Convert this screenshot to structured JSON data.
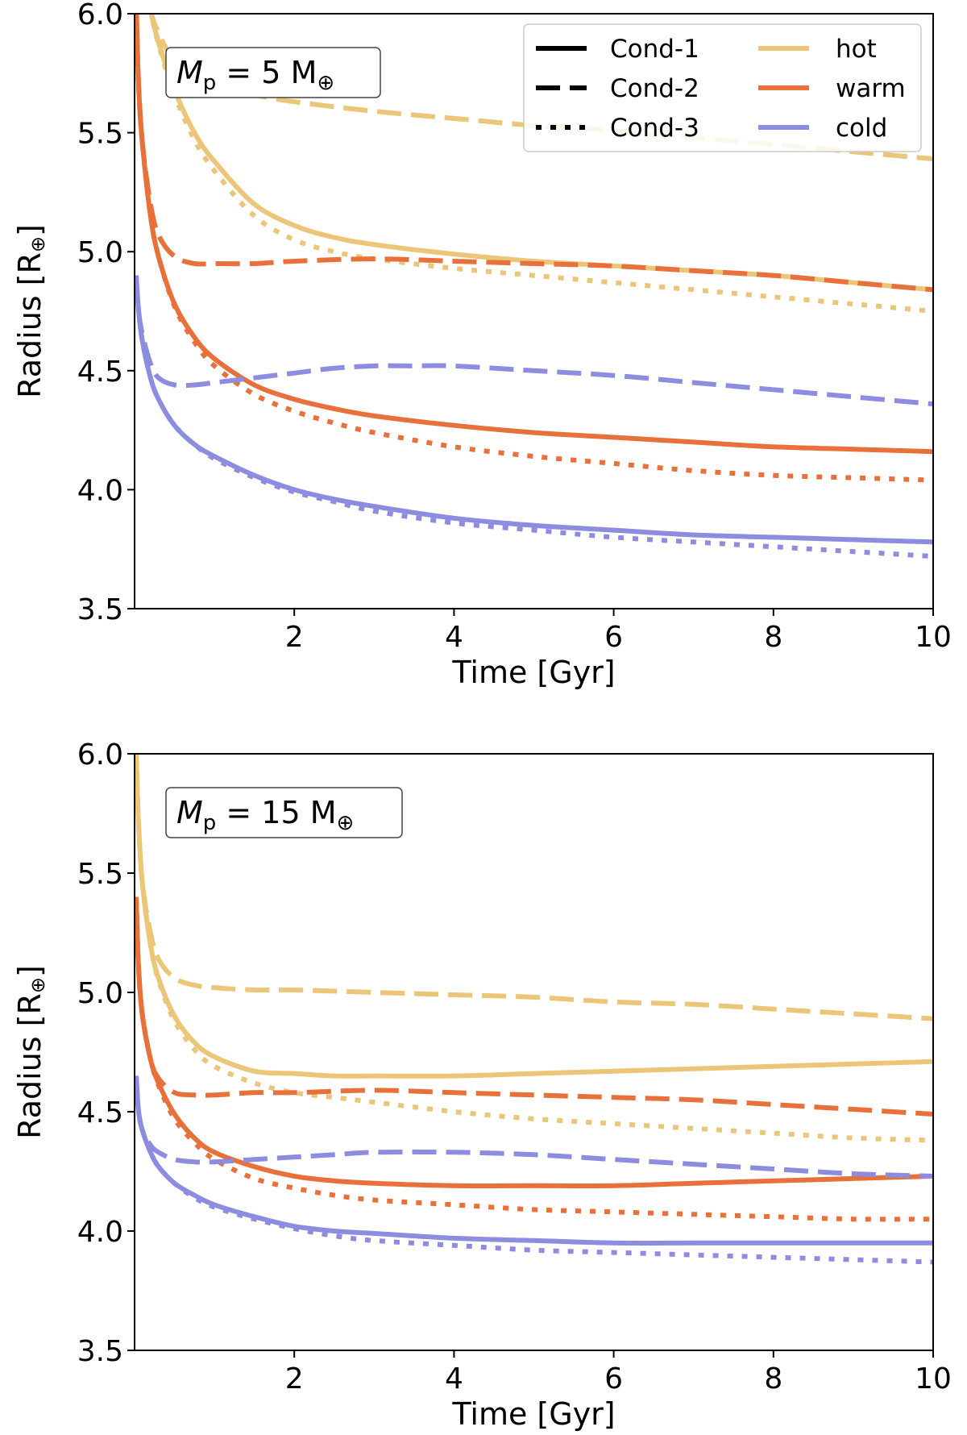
{
  "colors": {
    "hot": "#ebc578",
    "warm": "#e8703a",
    "cold": "#8c8de0",
    "legend_key": "#000000"
  },
  "legend": {
    "styles": [
      {
        "key": "cond1",
        "label": "Cond-1",
        "dash": "solid"
      },
      {
        "key": "cond2",
        "label": "Cond-2",
        "dash": "dashed"
      },
      {
        "key": "cond3",
        "label": "Cond-3",
        "dash": "dotted"
      }
    ],
    "temps": [
      {
        "key": "hot",
        "label": "hot"
      },
      {
        "key": "warm",
        "label": "warm"
      },
      {
        "key": "cold",
        "label": "cold"
      }
    ]
  },
  "chart_data": [
    {
      "type": "line",
      "title": "",
      "annotation": {
        "prefix": "M",
        "sub": "p",
        "value": " = 5 M",
        "symbol": "⊕"
      },
      "xlabel": "Time [Gyr]",
      "ylabel": "Radius [R",
      "ylabel_symbol": "⊕",
      "ylabel_close": "]",
      "xlim": [
        0,
        10
      ],
      "ylim": [
        3.5,
        6.0
      ],
      "xticks": [
        "2",
        "4",
        "6",
        "8",
        "10"
      ],
      "yticks": [
        "3.5",
        "4.0",
        "4.5",
        "5.0",
        "5.5",
        "6.0"
      ],
      "legend_position": "top-right",
      "series": [
        {
          "name": "hot Cond-1",
          "temp": "hot",
          "style": "cond1",
          "x": [
            0.05,
            0.1,
            0.2,
            0.3,
            0.5,
            0.75,
            1.0,
            1.5,
            2.0,
            2.5,
            3.0,
            4.0,
            5.0,
            6.0,
            7.0,
            8.0,
            9.0,
            10.0
          ],
          "y": [
            6.45,
            6.25,
            6.02,
            5.88,
            5.68,
            5.5,
            5.38,
            5.2,
            5.11,
            5.06,
            5.03,
            4.99,
            4.96,
            4.94,
            4.92,
            4.9,
            4.87,
            4.84
          ]
        },
        {
          "name": "hot Cond-2",
          "temp": "hot",
          "style": "cond2",
          "x": [
            0.05,
            0.1,
            0.2,
            0.3,
            0.5,
            0.75,
            1.0,
            1.5,
            2.0,
            3.0,
            4.0,
            5.0,
            6.0,
            7.0,
            8.0,
            9.0,
            10.0
          ],
          "y": [
            6.45,
            6.25,
            6.02,
            5.92,
            5.8,
            5.75,
            5.71,
            5.66,
            5.63,
            5.59,
            5.56,
            5.53,
            5.51,
            5.48,
            5.45,
            5.42,
            5.39
          ]
        },
        {
          "name": "hot Cond-3",
          "temp": "hot",
          "style": "cond3",
          "x": [
            0.05,
            0.1,
            0.2,
            0.3,
            0.5,
            0.75,
            1.0,
            1.5,
            2.0,
            2.5,
            3.0,
            4.0,
            5.0,
            6.0,
            7.0,
            8.0,
            9.0,
            10.0
          ],
          "y": [
            6.45,
            6.25,
            6.02,
            5.87,
            5.66,
            5.47,
            5.34,
            5.15,
            5.05,
            5.0,
            4.97,
            4.93,
            4.9,
            4.87,
            4.84,
            4.81,
            4.78,
            4.75
          ]
        },
        {
          "name": "warm Cond-1",
          "temp": "warm",
          "style": "cond1",
          "x": [
            0.02,
            0.05,
            0.1,
            0.2,
            0.3,
            0.5,
            0.75,
            1.0,
            1.5,
            2.0,
            2.5,
            3.0,
            4.0,
            5.0,
            6.0,
            7.0,
            8.0,
            9.0,
            10.0
          ],
          "y": [
            6.05,
            5.7,
            5.45,
            5.15,
            4.98,
            4.78,
            4.64,
            4.55,
            4.44,
            4.38,
            4.34,
            4.31,
            4.27,
            4.24,
            4.22,
            4.2,
            4.18,
            4.17,
            4.16
          ]
        },
        {
          "name": "warm Cond-2",
          "temp": "warm",
          "style": "cond2",
          "x": [
            0.02,
            0.05,
            0.1,
            0.2,
            0.3,
            0.5,
            0.75,
            1.0,
            1.5,
            2.0,
            3.0,
            4.0,
            5.0,
            6.0,
            7.0,
            8.0,
            9.0,
            10.0
          ],
          "y": [
            6.05,
            5.7,
            5.45,
            5.2,
            5.07,
            4.98,
            4.95,
            4.95,
            4.95,
            4.96,
            4.97,
            4.96,
            4.95,
            4.94,
            4.92,
            4.9,
            4.87,
            4.84
          ]
        },
        {
          "name": "warm Cond-3",
          "temp": "warm",
          "style": "cond3",
          "x": [
            0.02,
            0.05,
            0.1,
            0.2,
            0.3,
            0.5,
            0.75,
            1.0,
            1.5,
            2.0,
            2.5,
            3.0,
            4.0,
            5.0,
            6.0,
            7.0,
            8.0,
            9.0,
            10.0
          ],
          "y": [
            6.05,
            5.7,
            5.45,
            5.15,
            4.98,
            4.77,
            4.62,
            4.52,
            4.4,
            4.33,
            4.28,
            4.24,
            4.18,
            4.14,
            4.11,
            4.08,
            4.06,
            4.05,
            4.04
          ]
        },
        {
          "name": "cold Cond-1",
          "temp": "cold",
          "style": "cond1",
          "x": [
            0.02,
            0.05,
            0.1,
            0.2,
            0.3,
            0.5,
            0.75,
            1.0,
            1.5,
            2.0,
            2.5,
            3.0,
            4.0,
            5.0,
            6.0,
            7.0,
            8.0,
            9.0,
            10.0
          ],
          "y": [
            4.9,
            4.75,
            4.62,
            4.47,
            4.38,
            4.27,
            4.19,
            4.14,
            4.06,
            4.0,
            3.96,
            3.93,
            3.88,
            3.85,
            3.83,
            3.81,
            3.8,
            3.79,
            3.78
          ]
        },
        {
          "name": "cold Cond-2",
          "temp": "cold",
          "style": "cond2",
          "x": [
            0.02,
            0.05,
            0.1,
            0.2,
            0.3,
            0.5,
            0.75,
            1.0,
            1.5,
            2.0,
            2.5,
            3.0,
            3.5,
            4.0,
            5.0,
            6.0,
            7.0,
            8.0,
            9.0,
            10.0
          ],
          "y": [
            4.9,
            4.75,
            4.65,
            4.53,
            4.47,
            4.44,
            4.44,
            4.45,
            4.47,
            4.49,
            4.51,
            4.52,
            4.52,
            4.52,
            4.5,
            4.48,
            4.45,
            4.42,
            4.39,
            4.36
          ]
        },
        {
          "name": "cold Cond-3",
          "temp": "cold",
          "style": "cond3",
          "x": [
            0.02,
            0.05,
            0.1,
            0.2,
            0.3,
            0.5,
            0.75,
            1.0,
            1.5,
            2.0,
            2.5,
            3.0,
            4.0,
            5.0,
            6.0,
            7.0,
            8.0,
            9.0,
            10.0
          ],
          "y": [
            4.9,
            4.75,
            4.62,
            4.47,
            4.38,
            4.27,
            4.19,
            4.13,
            4.05,
            3.99,
            3.95,
            3.91,
            3.86,
            3.83,
            3.8,
            3.78,
            3.76,
            3.74,
            3.72
          ]
        }
      ]
    },
    {
      "type": "line",
      "title": "",
      "annotation": {
        "prefix": "M",
        "sub": "p",
        "value": " = 15 M",
        "symbol": "⊕"
      },
      "xlabel": "Time [Gyr]",
      "ylabel": "Radius [R",
      "ylabel_symbol": "⊕",
      "ylabel_close": "]",
      "xlim": [
        0,
        10
      ],
      "ylim": [
        3.5,
        6.0
      ],
      "xticks": [
        "2",
        "4",
        "6",
        "8",
        "10"
      ],
      "yticks": [
        "3.5",
        "4.0",
        "4.5",
        "5.0",
        "5.5",
        "6.0"
      ],
      "legend_position": "none",
      "series": [
        {
          "name": "hot Cond-1",
          "temp": "hot",
          "style": "cond1",
          "x": [
            0.02,
            0.05,
            0.1,
            0.2,
            0.3,
            0.5,
            0.75,
            1.0,
            1.5,
            2.0,
            2.5,
            3.0,
            4.0,
            5.0,
            6.0,
            7.0,
            8.0,
            9.0,
            10.0
          ],
          "y": [
            6.0,
            5.7,
            5.45,
            5.2,
            5.06,
            4.9,
            4.79,
            4.73,
            4.67,
            4.66,
            4.65,
            4.65,
            4.65,
            4.66,
            4.67,
            4.68,
            4.69,
            4.7,
            4.71
          ]
        },
        {
          "name": "hot Cond-2",
          "temp": "hot",
          "style": "cond2",
          "x": [
            0.02,
            0.05,
            0.1,
            0.2,
            0.3,
            0.5,
            0.75,
            1.0,
            1.5,
            2.0,
            3.0,
            4.0,
            5.0,
            6.0,
            7.0,
            8.0,
            9.0,
            10.0
          ],
          "y": [
            6.0,
            5.7,
            5.45,
            5.25,
            5.14,
            5.06,
            5.03,
            5.02,
            5.01,
            5.01,
            5.0,
            4.99,
            4.98,
            4.96,
            4.95,
            4.93,
            4.91,
            4.89
          ]
        },
        {
          "name": "hot Cond-3",
          "temp": "hot",
          "style": "cond3",
          "x": [
            0.02,
            0.05,
            0.1,
            0.2,
            0.3,
            0.5,
            0.75,
            1.0,
            1.5,
            2.0,
            2.5,
            3.0,
            4.0,
            5.0,
            6.0,
            7.0,
            8.0,
            9.0,
            10.0
          ],
          "y": [
            6.0,
            5.7,
            5.45,
            5.2,
            5.05,
            4.88,
            4.76,
            4.69,
            4.62,
            4.58,
            4.56,
            4.54,
            4.5,
            4.47,
            4.45,
            4.43,
            4.41,
            4.39,
            4.38
          ]
        },
        {
          "name": "warm Cond-1",
          "temp": "warm",
          "style": "cond1",
          "x": [
            0.02,
            0.05,
            0.1,
            0.2,
            0.3,
            0.5,
            0.75,
            1.0,
            1.5,
            2.0,
            2.5,
            3.0,
            4.0,
            5.0,
            6.0,
            7.0,
            8.0,
            9.0,
            10.0
          ],
          "y": [
            5.4,
            5.1,
            4.9,
            4.72,
            4.62,
            4.49,
            4.39,
            4.33,
            4.27,
            4.23,
            4.21,
            4.2,
            4.19,
            4.19,
            4.19,
            4.2,
            4.21,
            4.22,
            4.23
          ]
        },
        {
          "name": "warm Cond-2",
          "temp": "warm",
          "style": "cond2",
          "x": [
            0.02,
            0.05,
            0.1,
            0.2,
            0.3,
            0.5,
            0.75,
            1.0,
            1.5,
            2.0,
            3.0,
            4.0,
            5.0,
            6.0,
            7.0,
            8.0,
            9.0,
            10.0
          ],
          "y": [
            5.4,
            5.1,
            4.9,
            4.72,
            4.64,
            4.58,
            4.57,
            4.57,
            4.58,
            4.58,
            4.59,
            4.58,
            4.57,
            4.56,
            4.55,
            4.53,
            4.51,
            4.49
          ]
        },
        {
          "name": "warm Cond-3",
          "temp": "warm",
          "style": "cond3",
          "x": [
            0.02,
            0.05,
            0.1,
            0.2,
            0.3,
            0.5,
            0.75,
            1.0,
            1.5,
            2.0,
            2.5,
            3.0,
            4.0,
            5.0,
            6.0,
            7.0,
            8.0,
            9.0,
            10.0
          ],
          "y": [
            5.4,
            5.1,
            4.9,
            4.72,
            4.61,
            4.47,
            4.37,
            4.3,
            4.22,
            4.18,
            4.15,
            4.13,
            4.11,
            4.09,
            4.08,
            4.07,
            4.06,
            4.05,
            4.05
          ]
        },
        {
          "name": "cold Cond-1",
          "temp": "cold",
          "style": "cond1",
          "x": [
            0.02,
            0.05,
            0.1,
            0.2,
            0.3,
            0.5,
            0.75,
            1.0,
            1.5,
            2.0,
            2.5,
            3.0,
            4.0,
            5.0,
            6.0,
            7.0,
            8.0,
            9.0,
            10.0
          ],
          "y": [
            4.65,
            4.5,
            4.42,
            4.33,
            4.27,
            4.2,
            4.15,
            4.11,
            4.06,
            4.02,
            4.0,
            3.99,
            3.97,
            3.96,
            3.95,
            3.95,
            3.95,
            3.95,
            3.95
          ]
        },
        {
          "name": "cold Cond-2",
          "temp": "cold",
          "style": "cond2",
          "x": [
            0.02,
            0.05,
            0.1,
            0.2,
            0.3,
            0.5,
            0.75,
            1.0,
            1.5,
            2.0,
            2.5,
            3.0,
            4.0,
            5.0,
            6.0,
            7.0,
            8.0,
            9.0,
            10.0
          ],
          "y": [
            4.65,
            4.5,
            4.42,
            4.36,
            4.33,
            4.3,
            4.29,
            4.29,
            4.3,
            4.31,
            4.32,
            4.33,
            4.33,
            4.32,
            4.3,
            4.28,
            4.26,
            4.24,
            4.23
          ]
        },
        {
          "name": "cold Cond-3",
          "temp": "cold",
          "style": "cond3",
          "x": [
            0.02,
            0.05,
            0.1,
            0.2,
            0.3,
            0.5,
            0.75,
            1.0,
            1.5,
            2.0,
            2.5,
            3.0,
            4.0,
            5.0,
            6.0,
            7.0,
            8.0,
            9.0,
            10.0
          ],
          "y": [
            4.65,
            4.5,
            4.42,
            4.33,
            4.27,
            4.2,
            4.14,
            4.1,
            4.05,
            4.01,
            3.98,
            3.96,
            3.94,
            3.92,
            3.91,
            3.9,
            3.89,
            3.88,
            3.87
          ]
        }
      ]
    }
  ]
}
